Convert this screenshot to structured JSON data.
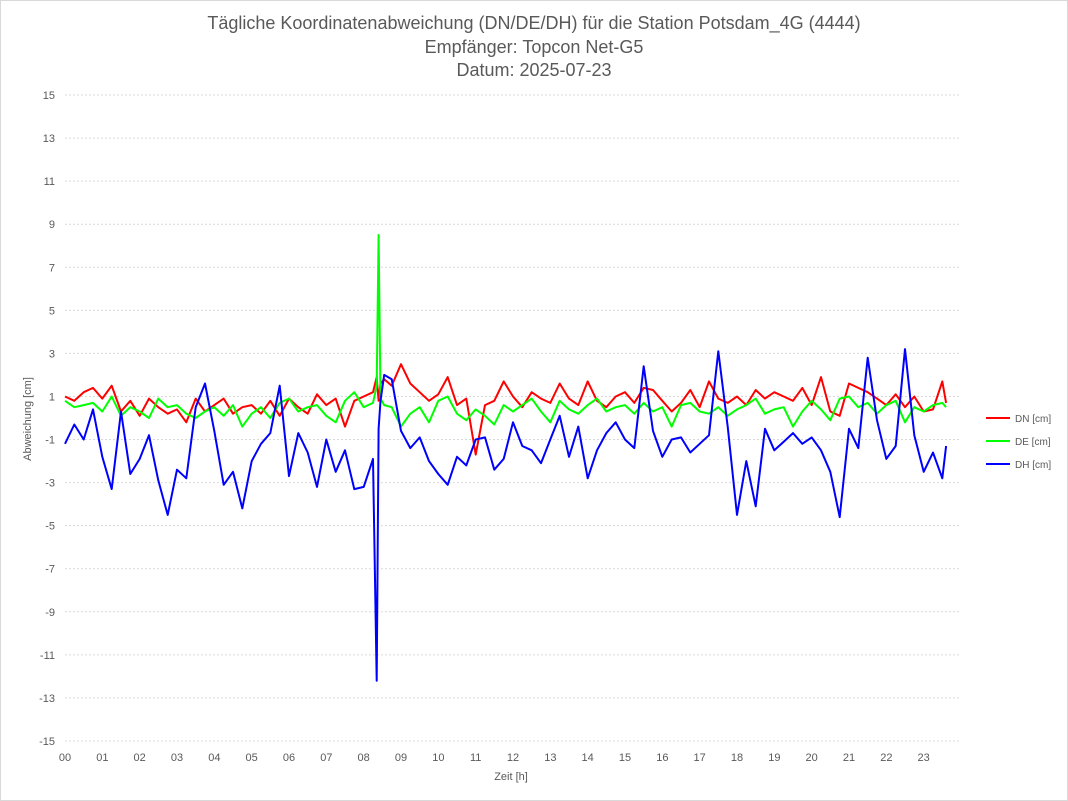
{
  "colors": {
    "dn": "#FF0000",
    "de": "#00FF00",
    "dh": "#0000FF",
    "grid": "#D9D9D9",
    "text": "#595959"
  },
  "chart_data": {
    "type": "line",
    "title_lines": [
      "Tägliche Koordinatenabweichung (DN/DE/DH) für die Station Potsdam_4G (4444)",
      "Empfänger: Topcon Net-G5",
      "Datum: 2025-07-23"
    ],
    "xlabel": "Zeit [h]",
    "ylabel": "Abweichung [cm]",
    "xlim": [
      0,
      24
    ],
    "ylim": [
      -15,
      15
    ],
    "x_ticks": [
      "00",
      "01",
      "02",
      "03",
      "04",
      "05",
      "06",
      "07",
      "08",
      "09",
      "10",
      "11",
      "12",
      "13",
      "14",
      "15",
      "16",
      "17",
      "18",
      "19",
      "20",
      "21",
      "22",
      "23"
    ],
    "y_ticks": [
      "15",
      "13",
      "11",
      "9",
      "7",
      "5",
      "3",
      "1",
      "-1",
      "-3",
      "-5",
      "-7",
      "-9",
      "-11",
      "-13",
      "-15"
    ],
    "y_tick_values": [
      15,
      13,
      11,
      9,
      7,
      5,
      3,
      1,
      -1,
      -3,
      -5,
      -7,
      -9,
      -11,
      -13,
      -15
    ],
    "grid": true,
    "legend_position": "right",
    "x": [
      0.0,
      0.25,
      0.5,
      0.75,
      1.0,
      1.25,
      1.5,
      1.75,
      2.0,
      2.25,
      2.5,
      2.75,
      3.0,
      3.25,
      3.5,
      3.75,
      4.0,
      4.25,
      4.5,
      4.75,
      5.0,
      5.25,
      5.5,
      5.75,
      6.0,
      6.25,
      6.5,
      6.75,
      7.0,
      7.25,
      7.5,
      7.75,
      8.0,
      8.25,
      8.35,
      8.4,
      8.45,
      8.55,
      8.75,
      9.0,
      9.25,
      9.5,
      9.75,
      10.0,
      10.25,
      10.5,
      10.75,
      11.0,
      11.25,
      11.5,
      11.75,
      12.0,
      12.25,
      12.5,
      12.75,
      13.0,
      13.25,
      13.5,
      13.75,
      14.0,
      14.25,
      14.5,
      14.75,
      15.0,
      15.25,
      15.5,
      15.75,
      16.0,
      16.25,
      16.5,
      16.75,
      17.0,
      17.25,
      17.5,
      17.75,
      18.0,
      18.25,
      18.5,
      18.75,
      19.0,
      19.25,
      19.5,
      19.75,
      20.0,
      20.25,
      20.5,
      20.75,
      21.0,
      21.25,
      21.5,
      21.75,
      22.0,
      22.25,
      22.5,
      22.75,
      23.0,
      23.25,
      23.5,
      23.6
    ],
    "series": [
      {
        "name": "DN [cm]",
        "color": "#FF0000",
        "values": [
          1.0,
          0.8,
          1.2,
          1.4,
          0.9,
          1.5,
          0.3,
          0.8,
          0.1,
          0.9,
          0.5,
          0.2,
          0.4,
          -0.2,
          0.9,
          0.3,
          0.6,
          0.9,
          0.2,
          0.5,
          0.6,
          0.2,
          0.8,
          0.1,
          0.9,
          0.5,
          0.2,
          1.1,
          0.6,
          0.9,
          -0.4,
          0.8,
          1.0,
          1.2,
          1.9,
          0.8,
          1.6,
          1.8,
          1.5,
          2.5,
          1.6,
          1.2,
          0.8,
          1.1,
          1.9,
          0.6,
          0.9,
          -1.7,
          0.6,
          0.8,
          1.7,
          1.0,
          0.5,
          1.2,
          0.9,
          0.7,
          1.6,
          0.9,
          0.6,
          1.7,
          0.8,
          0.5,
          1.0,
          1.2,
          0.7,
          1.4,
          1.3,
          0.8,
          0.3,
          0.7,
          1.3,
          0.5,
          1.7,
          0.9,
          0.7,
          1.0,
          0.6,
          1.3,
          0.9,
          1.2,
          1.0,
          0.8,
          1.4,
          0.6,
          1.9,
          0.3,
          0.1,
          1.6,
          1.4,
          1.2,
          0.9,
          0.6,
          1.1,
          0.5,
          1.0,
          0.3,
          0.4,
          1.7,
          0.7
        ]
      },
      {
        "name": "DE [cm]",
        "color": "#00FF00",
        "values": [
          0.8,
          0.5,
          0.6,
          0.7,
          0.3,
          1.0,
          0.1,
          0.5,
          0.3,
          0.0,
          0.9,
          0.5,
          0.6,
          0.2,
          0.0,
          0.3,
          0.5,
          0.1,
          0.6,
          -0.4,
          0.2,
          0.5,
          0.0,
          0.7,
          0.9,
          0.3,
          0.5,
          0.6,
          0.1,
          -0.2,
          0.8,
          1.2,
          0.5,
          0.7,
          1.5,
          8.5,
          0.9,
          0.6,
          0.5,
          -0.4,
          0.2,
          0.5,
          -0.2,
          0.8,
          1.0,
          0.2,
          -0.1,
          0.4,
          0.1,
          -0.3,
          0.6,
          0.3,
          0.6,
          0.9,
          0.3,
          -0.2,
          0.8,
          0.4,
          0.2,
          0.6,
          0.9,
          0.3,
          0.5,
          0.6,
          0.2,
          0.7,
          0.3,
          0.5,
          -0.4,
          0.6,
          0.7,
          0.3,
          0.2,
          0.5,
          0.1,
          0.4,
          0.6,
          0.9,
          0.2,
          0.4,
          0.5,
          -0.4,
          0.3,
          0.8,
          0.4,
          -0.1,
          0.9,
          1.0,
          0.5,
          0.7,
          0.2,
          0.6,
          0.8,
          -0.2,
          0.5,
          0.3,
          0.6,
          0.7,
          0.5
        ]
      },
      {
        "name": "DH [cm]",
        "color": "#0000FF",
        "values": [
          -1.2,
          -0.3,
          -1.0,
          0.4,
          -1.8,
          -3.3,
          0.3,
          -2.6,
          -1.9,
          -0.8,
          -2.9,
          -4.5,
          -2.4,
          -2.8,
          0.5,
          1.6,
          -0.6,
          -3.1,
          -2.5,
          -4.2,
          -2.0,
          -1.2,
          -0.7,
          1.5,
          -2.7,
          -0.7,
          -1.6,
          -3.2,
          -1.0,
          -2.5,
          -1.5,
          -3.3,
          -3.2,
          -1.9,
          -12.2,
          -0.5,
          0.8,
          2.0,
          1.8,
          -0.6,
          -1.4,
          -0.9,
          -2.0,
          -2.6,
          -3.1,
          -1.8,
          -2.2,
          -1.0,
          -0.9,
          -2.4,
          -1.9,
          -0.2,
          -1.3,
          -1.5,
          -2.1,
          -1.0,
          0.1,
          -1.8,
          -0.4,
          -2.8,
          -1.5,
          -0.7,
          -0.2,
          -1.0,
          -1.4,
          2.4,
          -0.6,
          -1.8,
          -1.0,
          -0.9,
          -1.6,
          -1.2,
          -0.8,
          3.1,
          -0.4,
          -4.5,
          -2.0,
          -4.1,
          -0.5,
          -1.5,
          -1.1,
          -0.7,
          -1.2,
          -0.9,
          -1.5,
          -2.5,
          -4.6,
          -0.5,
          -1.4,
          2.8,
          -0.1,
          -1.9,
          -1.3,
          3.2,
          -0.8,
          -2.5,
          -1.6,
          -2.8,
          -1.3
        ]
      }
    ]
  }
}
